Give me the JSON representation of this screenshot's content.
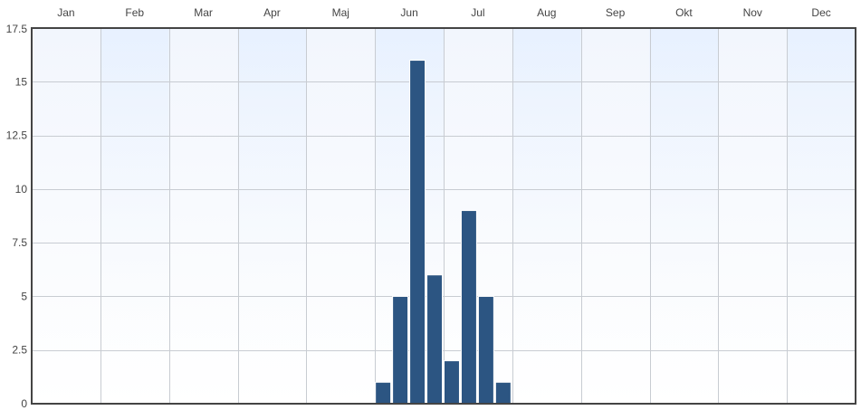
{
  "chart_data": {
    "type": "bar",
    "categories": [
      "Jan",
      "Feb",
      "Mar",
      "Apr",
      "Maj",
      "Jun",
      "Jul",
      "Aug",
      "Sep",
      "Okt",
      "Nov",
      "Dec"
    ],
    "xlim": [
      1,
      13
    ],
    "ylim": [
      0,
      17.5
    ],
    "yticks": [
      "0",
      "2.5",
      "5",
      "7.5",
      "10",
      "12.5",
      "15",
      "17.5"
    ],
    "bars": [
      {
        "x": 6.0,
        "value": 1
      },
      {
        "x": 6.25,
        "value": 5
      },
      {
        "x": 6.5,
        "value": 16
      },
      {
        "x": 6.75,
        "value": 6
      },
      {
        "x": 7.0,
        "value": 2
      },
      {
        "x": 7.25,
        "value": 9
      },
      {
        "x": 7.5,
        "value": 5
      },
      {
        "x": 7.75,
        "value": 1
      }
    ],
    "x_axis_position": "top",
    "grid": true,
    "colors": {
      "bar": "#2c5582",
      "bar_stroke": "#ffffff",
      "grid": "#c8ccd2",
      "frame": "#444444",
      "band_top": "#e6f0ff",
      "band_bottom": "#ffffff"
    }
  }
}
